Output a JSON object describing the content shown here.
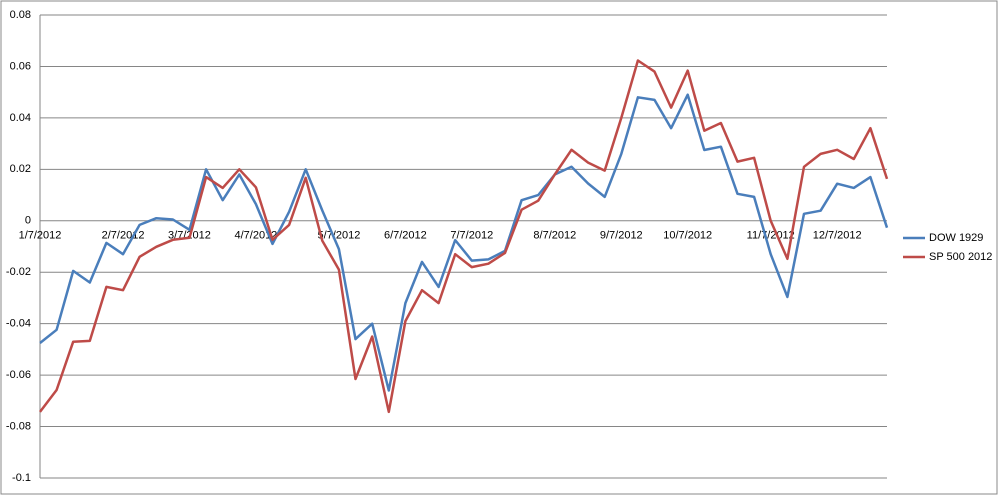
{
  "chart_data": {
    "type": "line",
    "categories": [
      "1/7/2012",
      null,
      null,
      null,
      null,
      "2/7/2012",
      null,
      null,
      null,
      "3/7/2012",
      null,
      null,
      null,
      "4/7/2012",
      null,
      null,
      null,
      null,
      "5/7/2012",
      null,
      null,
      null,
      "6/7/2012",
      null,
      null,
      null,
      "7/7/2012",
      null,
      null,
      null,
      null,
      "8/7/2012",
      null,
      null,
      null,
      "9/7/2012",
      null,
      null,
      null,
      "10/7/2012",
      null,
      null,
      null,
      null,
      "11/7/2012",
      null,
      null,
      null,
      "12/7/2012",
      null,
      null,
      null
    ],
    "series": [
      {
        "name": "DOW 1929",
        "color": "#4a7ebb",
        "values": [
          -0.0475,
          -0.0424,
          -0.0195,
          -0.024,
          -0.0086,
          -0.013,
          -0.0016,
          0.001,
          0.0005,
          -0.0035,
          0.02,
          0.008,
          0.018,
          0.0065,
          -0.009,
          0.0035,
          0.02,
          0.004,
          -0.011,
          -0.046,
          -0.04,
          -0.066,
          -0.032,
          -0.016,
          -0.0257,
          -0.0075,
          -0.0155,
          -0.015,
          -0.0117,
          0.008,
          0.01,
          0.018,
          0.021,
          0.0145,
          0.0093,
          0.026,
          0.048,
          0.047,
          0.036,
          0.049,
          0.0275,
          0.0288,
          0.0105,
          0.0093,
          -0.013,
          -0.0296,
          0.0027,
          0.0039,
          0.0144,
          0.0128,
          0.017,
          -0.0027
        ]
      },
      {
        "name": "SP 500 2012",
        "color": "#be4b48",
        "values": [
          -0.0743,
          -0.0658,
          -0.047,
          -0.0467,
          -0.0257,
          -0.027,
          -0.014,
          -0.0101,
          -0.0074,
          -0.0066,
          0.017,
          0.0128,
          0.02,
          0.013,
          -0.0074,
          -0.0016,
          0.0167,
          -0.0078,
          -0.019,
          -0.0615,
          -0.045,
          -0.0743,
          -0.039,
          -0.027,
          -0.032,
          -0.013,
          -0.018,
          -0.0167,
          -0.0125,
          0.0043,
          0.0078,
          0.018,
          0.0276,
          0.0226,
          0.0195,
          0.04,
          0.0623,
          0.058,
          0.044,
          0.0584,
          0.035,
          0.038,
          0.023,
          0.0245,
          0,
          -0.0148,
          0.021,
          0.026,
          0.0276,
          0.024,
          0.036,
          0.0163
        ]
      }
    ],
    "ylim": [
      -0.1,
      0.08
    ],
    "yticks": [
      -0.1,
      -0.08,
      -0.06,
      -0.04,
      -0.02,
      0,
      0.02,
      0.04,
      0.06,
      0.08
    ],
    "grid": true,
    "legend": "right"
  }
}
